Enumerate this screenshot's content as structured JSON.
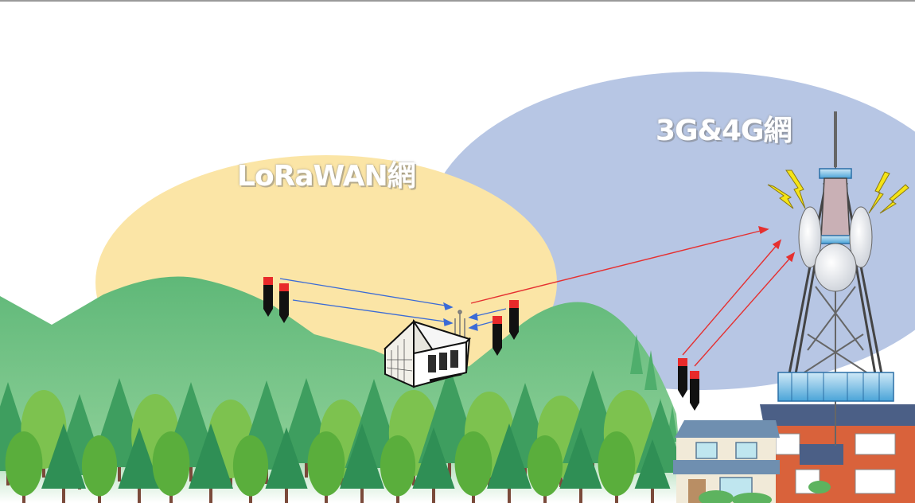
{
  "labels": {
    "lorawan": "LoRaWAN網",
    "cellular": "3G&4G網"
  },
  "colors": {
    "lorawan_zone": "#fbe5a6",
    "cellular_zone": "#b7c6e4",
    "mountain": "#6cbf84",
    "forest_dark": "#3e9e5f",
    "forest_light": "#7dc24f",
    "lora_link": "#3b6bd6",
    "cellular_link": "#e53030",
    "lightning": "#f5e416",
    "sensor_cap": "#e82a2a",
    "sensor_body": "#111111"
  },
  "icons": [
    "sensor-probe-icon",
    "gateway-building-icon",
    "antenna-icon",
    "cell-tower-icon",
    "lightning-icon",
    "house-icon",
    "tree-icon"
  ]
}
